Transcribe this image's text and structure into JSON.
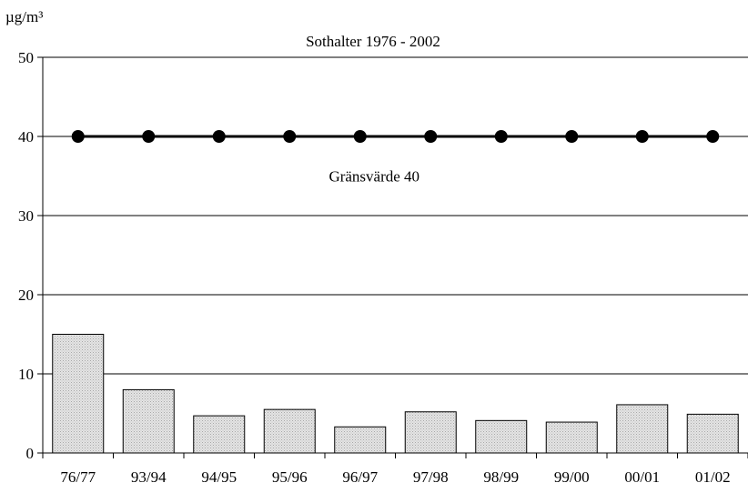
{
  "chart_data": {
    "type": "bar",
    "title": "Sothalter 1976 - 2002",
    "ylabel": "µg/m³",
    "xlabel": "",
    "ylim": [
      0,
      50
    ],
    "yticks": [
      0,
      10,
      20,
      30,
      40,
      50
    ],
    "grid": true,
    "categories": [
      "76/77",
      "93/94",
      "94/95",
      "95/96",
      "96/97",
      "97/98",
      "98/99",
      "99/00",
      "00/01",
      "01/02"
    ],
    "series": [
      {
        "type": "bar",
        "values": [
          15,
          8,
          4.7,
          5.5,
          3.3,
          5.2,
          4.1,
          3.9,
          6.1,
          4.9
        ],
        "color": "#d9d9d9"
      },
      {
        "type": "line",
        "values": [
          40,
          40,
          40,
          40,
          40,
          40,
          40,
          40,
          40,
          40
        ],
        "color": "#000000"
      }
    ],
    "annotations": [
      {
        "text": "Gränsvärde 40",
        "x": "97/98",
        "y": 35
      }
    ]
  }
}
